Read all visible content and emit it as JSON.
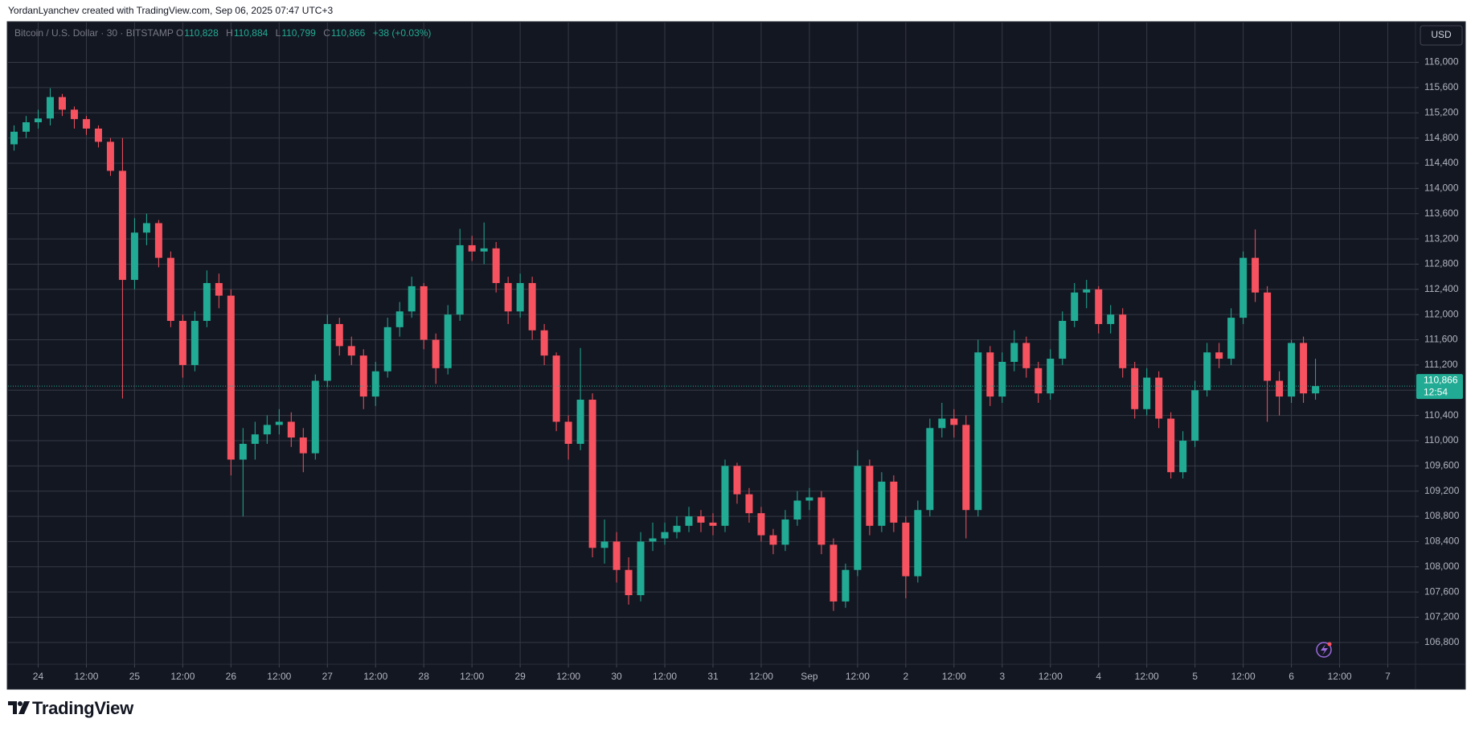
{
  "caption": "YordanLyanchev created with TradingView.com, Sep 06, 2025 07:47 UTC+3",
  "footer": {
    "brand": "TradingView"
  },
  "chart_data": {
    "type": "candlestick",
    "symbol_legend": {
      "symbol": "Bitcoin / U.S. Dollar · 30 · BITSTAMP",
      "o_label": "O",
      "open": "110,828",
      "h_label": "H",
      "high": "110,884",
      "l_label": "L",
      "low": "110,799",
      "c_label": "C",
      "close": "110,866",
      "change": "+38 (+0.03%)"
    },
    "currency": "USD",
    "last_price": {
      "value": 110866,
      "label": "110,866"
    },
    "countdown": "12:54",
    "colors": {
      "up": "#22ab94",
      "down": "#f7525f"
    },
    "grid": true,
    "xlim": [
      -0.5,
      116.3
    ],
    "ylim": [
      106454,
      116632
    ],
    "xticks": [
      {
        "value": 2,
        "label": "24"
      },
      {
        "value": 6,
        "label": "12:00"
      },
      {
        "value": 10,
        "label": "25"
      },
      {
        "value": 14,
        "label": "12:00"
      },
      {
        "value": 18,
        "label": "26"
      },
      {
        "value": 22,
        "label": "12:00"
      },
      {
        "value": 26,
        "label": "27"
      },
      {
        "value": 30,
        "label": "12:00"
      },
      {
        "value": 34,
        "label": "28"
      },
      {
        "value": 38,
        "label": "12:00"
      },
      {
        "value": 42,
        "label": "29"
      },
      {
        "value": 46,
        "label": "12:00"
      },
      {
        "value": 50,
        "label": "30"
      },
      {
        "value": 54,
        "label": "12:00"
      },
      {
        "value": 58,
        "label": "31"
      },
      {
        "value": 62,
        "label": "12:00"
      },
      {
        "value": 66,
        "label": "Sep"
      },
      {
        "value": 70,
        "label": "12:00"
      },
      {
        "value": 74,
        "label": "2"
      },
      {
        "value": 78,
        "label": "12:00"
      },
      {
        "value": 82,
        "label": "3"
      },
      {
        "value": 86,
        "label": "12:00"
      },
      {
        "value": 90,
        "label": "4"
      },
      {
        "value": 94,
        "label": "12:00"
      },
      {
        "value": 98,
        "label": "5"
      },
      {
        "value": 102,
        "label": "12:00"
      },
      {
        "value": 106,
        "label": "6"
      },
      {
        "value": 110,
        "label": "12:00"
      },
      {
        "value": 114,
        "label": "7"
      }
    ],
    "yticks": [
      {
        "value": 106800,
        "label": "106,800"
      },
      {
        "value": 107200,
        "label": "107,200"
      },
      {
        "value": 107600,
        "label": "107,600"
      },
      {
        "value": 108000,
        "label": "108,000"
      },
      {
        "value": 108400,
        "label": "108,400"
      },
      {
        "value": 108800,
        "label": "108,800"
      },
      {
        "value": 109200,
        "label": "109,200"
      },
      {
        "value": 109600,
        "label": "109,600"
      },
      {
        "value": 110000,
        "label": "110,000"
      },
      {
        "value": 110400,
        "label": "110,400"
      },
      {
        "value": 110800,
        "label": "110,800"
      },
      {
        "value": 111200,
        "label": "111,200"
      },
      {
        "value": 111600,
        "label": "111,600"
      },
      {
        "value": 112000,
        "label": "112,000"
      },
      {
        "value": 112400,
        "label": "112,400"
      },
      {
        "value": 112800,
        "label": "112,800"
      },
      {
        "value": 113200,
        "label": "113,200"
      },
      {
        "value": 113600,
        "label": "113,600"
      },
      {
        "value": 114000,
        "label": "114,000"
      },
      {
        "value": 114400,
        "label": "114,400"
      },
      {
        "value": 114800,
        "label": "114,800"
      },
      {
        "value": 115200,
        "label": "115,200"
      },
      {
        "value": 115600,
        "label": "115,600"
      },
      {
        "value": 116000,
        "label": "116,000"
      }
    ],
    "open": [
      114700,
      114900,
      115050,
      115110,
      115450,
      115250,
      115100,
      114950,
      114740,
      114280,
      112550,
      113300,
      113450,
      112900,
      111900,
      111200,
      111900,
      112500,
      112300,
      109700,
      109950,
      110100,
      110250,
      110300,
      110050,
      109800,
      110950,
      111850,
      111500,
      111350,
      110700,
      111100,
      111800,
      112050,
      112450,
      111600,
      111150,
      112000,
      113100,
      113000,
      113050,
      112500,
      112050,
      112500,
      111750,
      111350,
      110300,
      109950,
      110650,
      108300,
      108400,
      107950,
      107550,
      108400,
      108450,
      108550,
      108650,
      108800,
      108700,
      108650,
      109600,
      109150,
      108850,
      108500,
      108350,
      108750,
      109050,
      109100,
      108350,
      107450,
      107950,
      109600,
      108650,
      109350,
      108700,
      107850,
      108900,
      110200,
      110350,
      110250,
      108900,
      111400,
      110700,
      111250,
      111550,
      111150,
      110750,
      111300,
      111900,
      112350,
      112400,
      111850,
      112000,
      111150,
      110500,
      111000,
      110350,
      109500,
      110000,
      110800,
      111400,
      111300,
      111950,
      112900,
      112350,
      110950,
      110700,
      111550,
      110750
    ],
    "high": [
      115000,
      115150,
      115250,
      115590,
      115500,
      115300,
      115150,
      115000,
      114800,
      114800,
      113530,
      113600,
      113500,
      113000,
      112000,
      112050,
      112700,
      112650,
      112400,
      110200,
      110300,
      110400,
      110500,
      110450,
      110200,
      111050,
      112000,
      111950,
      111650,
      111450,
      111250,
      111950,
      112200,
      112600,
      112500,
      111700,
      112150,
      113360,
      113250,
      113460,
      113150,
      112600,
      112650,
      112600,
      111850,
      111400,
      110400,
      111470,
      110750,
      108750,
      108550,
      108150,
      108550,
      108700,
      108700,
      108800,
      108950,
      108900,
      108850,
      109700,
      109650,
      109250,
      108950,
      108600,
      108900,
      109200,
      109250,
      109200,
      108450,
      108050,
      109850,
      109700,
      109500,
      109450,
      108800,
      109050,
      110350,
      110600,
      110500,
      110400,
      111600,
      111500,
      111400,
      111750,
      111650,
      111250,
      111450,
      112050,
      112500,
      112550,
      112450,
      112150,
      112100,
      111250,
      111150,
      111100,
      110450,
      110150,
      110950,
      111550,
      111550,
      112100,
      113000,
      113350,
      112450,
      111100,
      111600,
      111650,
      111300
    ],
    "low": [
      114600,
      114800,
      114950,
      115000,
      115150,
      114950,
      114850,
      114650,
      114200,
      110670,
      112400,
      113100,
      112750,
      111800,
      111000,
      111100,
      111800,
      112100,
      109450,
      108800,
      109700,
      109950,
      110100,
      109900,
      109500,
      109700,
      110850,
      111350,
      111200,
      110500,
      110550,
      111000,
      111650,
      111950,
      111450,
      110900,
      111050,
      111900,
      112850,
      112800,
      112350,
      111850,
      111950,
      111600,
      111200,
      110150,
      109700,
      109850,
      108150,
      108050,
      107750,
      107400,
      107450,
      108250,
      108350,
      108450,
      108550,
      108550,
      108500,
      108550,
      109000,
      108700,
      108400,
      108200,
      108250,
      108650,
      108900,
      108200,
      107300,
      107350,
      107850,
      108500,
      108550,
      108550,
      107500,
      107750,
      108800,
      110050,
      110050,
      108450,
      108800,
      110550,
      110600,
      111100,
      111000,
      110600,
      110650,
      111200,
      111800,
      112100,
      111700,
      111700,
      111000,
      110350,
      110400,
      110200,
      109400,
      109400,
      109900,
      110700,
      111150,
      111200,
      111850,
      112200,
      110300,
      110400,
      110600,
      110600,
      110650
    ],
    "close": [
      114900,
      115050,
      115110,
      115450,
      115250,
      115100,
      114950,
      114740,
      114280,
      112550,
      113300,
      113450,
      112900,
      111900,
      111200,
      111900,
      112500,
      112300,
      109700,
      109950,
      110100,
      110250,
      110300,
      110050,
      109800,
      110950,
      111850,
      111500,
      111350,
      110700,
      111100,
      111800,
      112050,
      112450,
      111600,
      111150,
      112000,
      113100,
      113000,
      113050,
      112500,
      112050,
      112500,
      111750,
      111350,
      110300,
      109950,
      110650,
      108300,
      108400,
      107950,
      107550,
      108400,
      108450,
      108550,
      108650,
      108800,
      108700,
      108650,
      109600,
      109150,
      108850,
      108500,
      108350,
      108750,
      109050,
      109100,
      108350,
      107450,
      107950,
      109600,
      108650,
      109350,
      108700,
      107850,
      108900,
      110200,
      110350,
      110250,
      108900,
      111400,
      110700,
      111250,
      111550,
      111150,
      110750,
      111300,
      111900,
      112350,
      112400,
      111850,
      112000,
      111150,
      110500,
      111000,
      110350,
      109500,
      110000,
      110800,
      111400,
      111300,
      111950,
      112900,
      112350,
      110950,
      110700,
      111550,
      110750,
      110866
    ]
  }
}
